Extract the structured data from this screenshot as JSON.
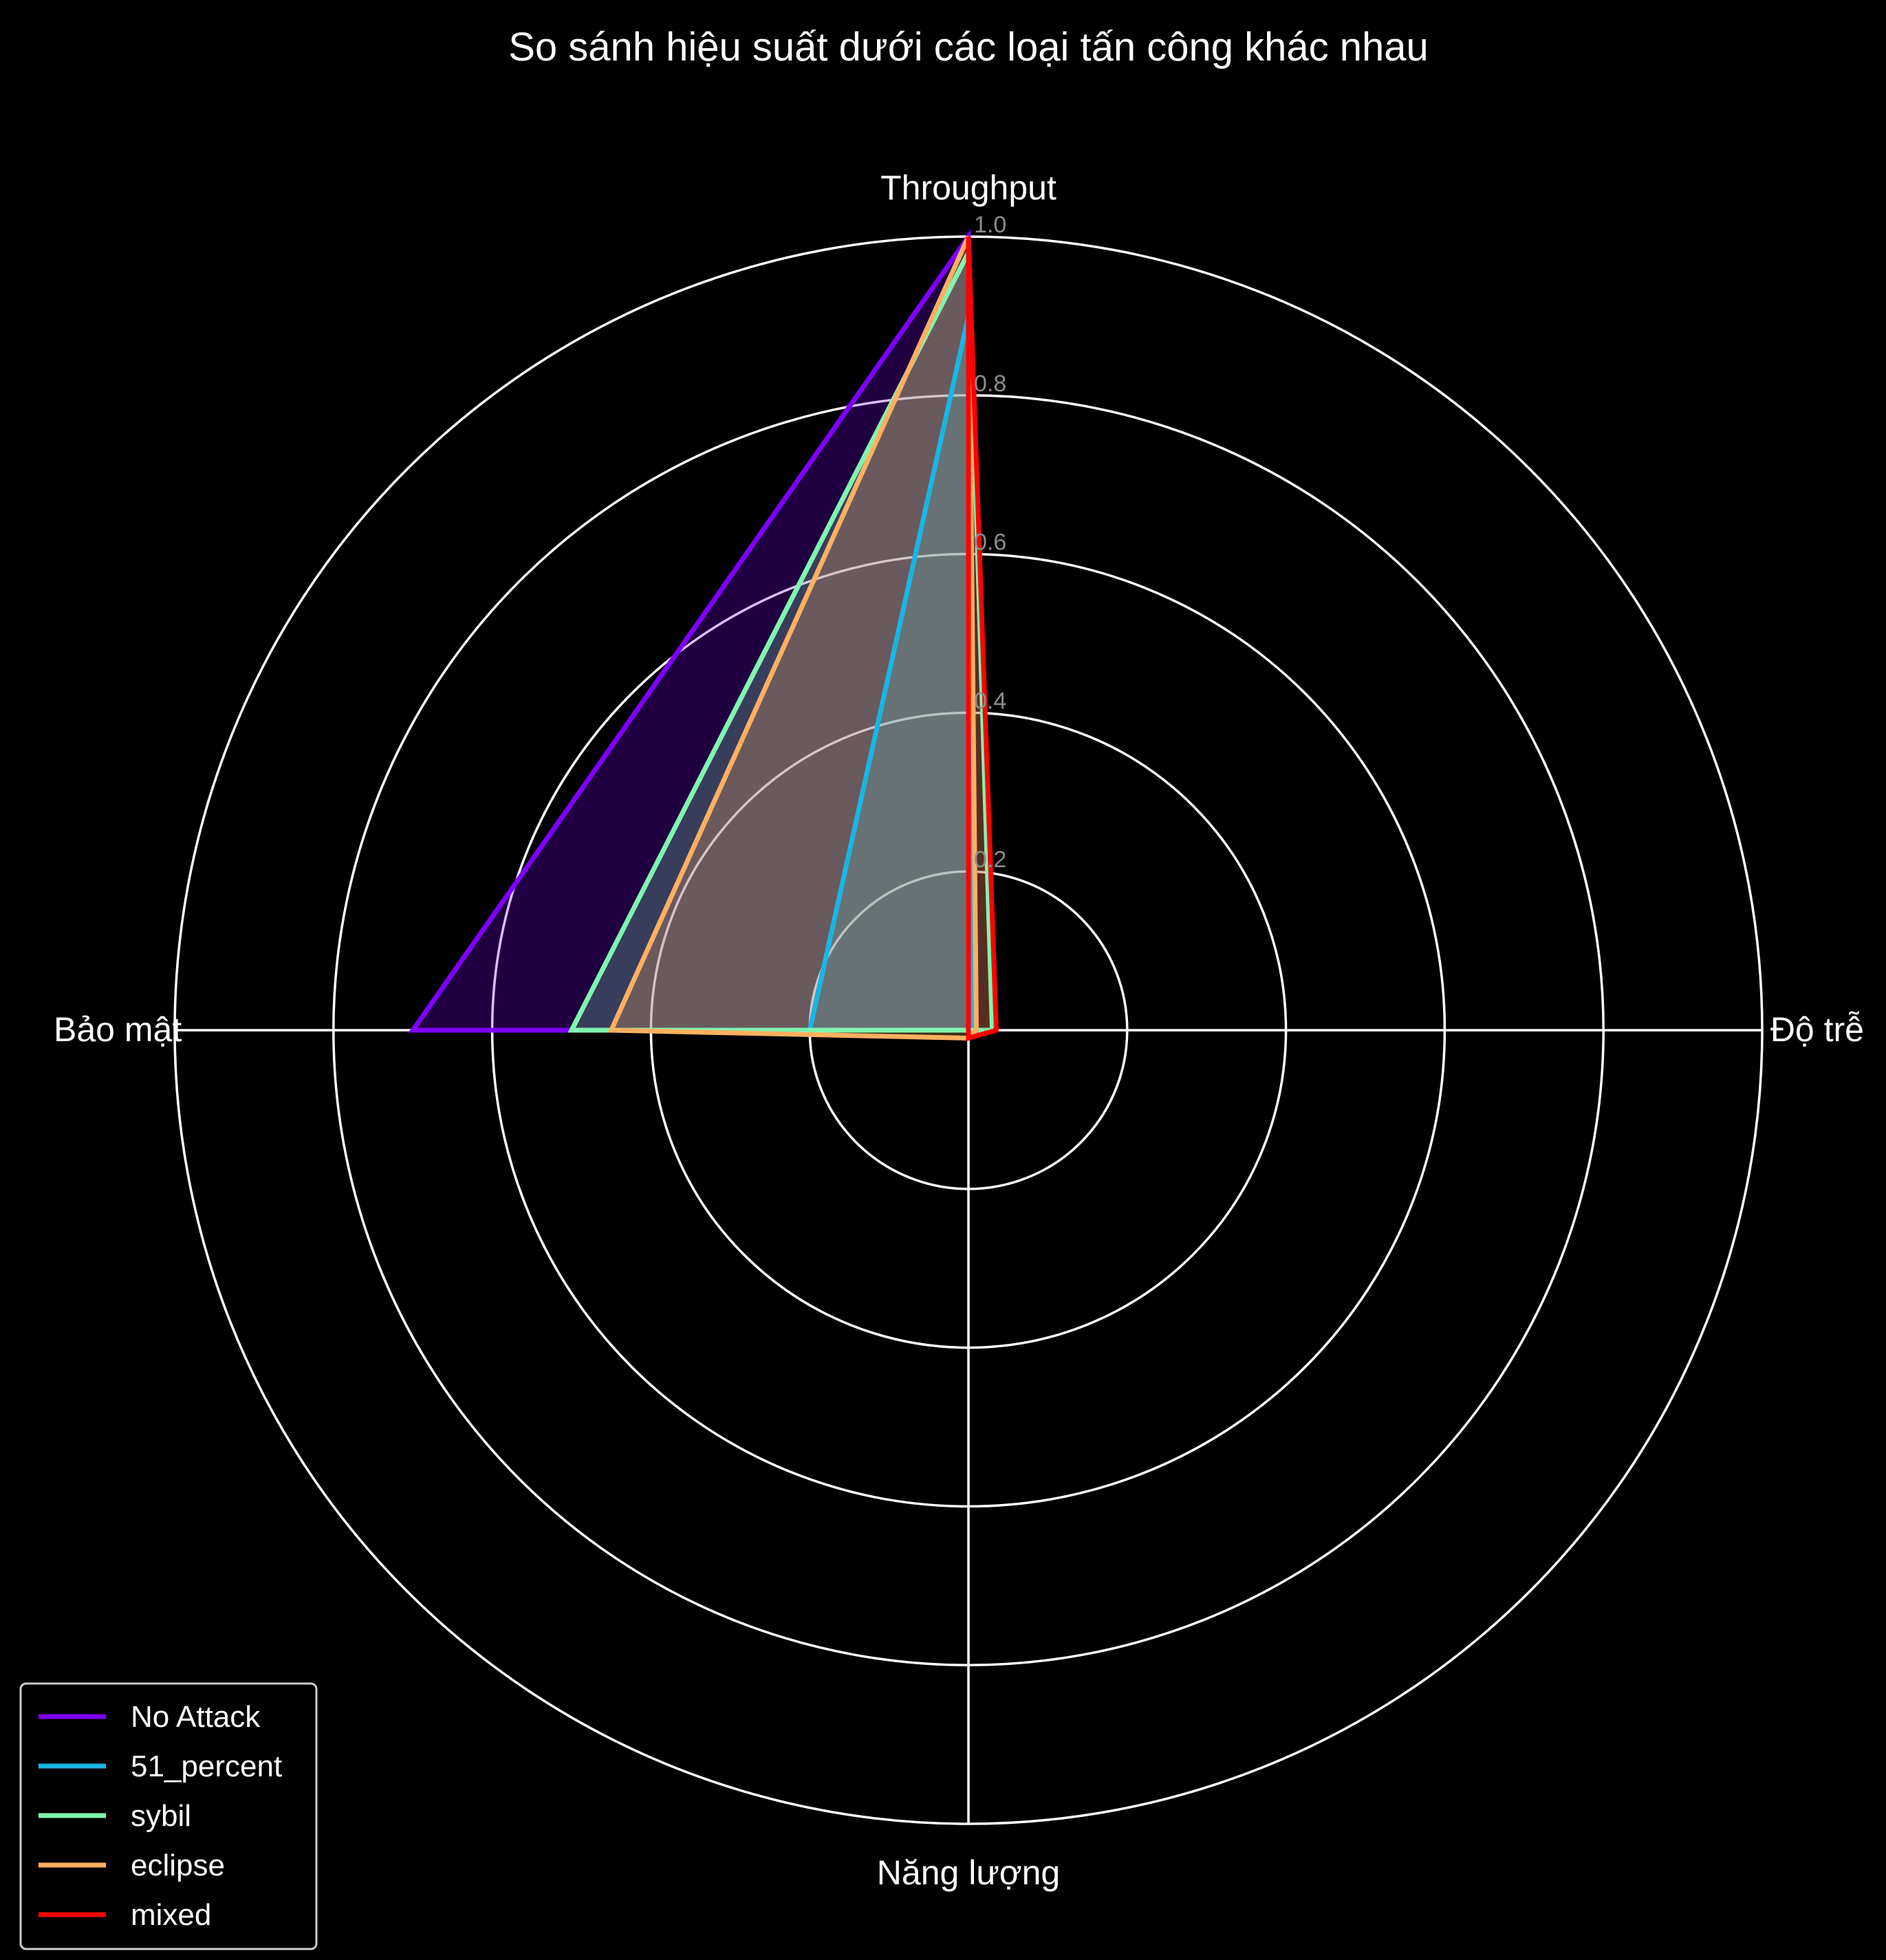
{
  "chart_data": {
    "type": "radar",
    "title": "So sánh hiệu suất dưới các loại tấn công khác nhau",
    "categories": [
      "Throughput",
      "Độ trễ",
      "Năng lượng",
      "Bảo mật"
    ],
    "rlim": [
      0,
      1.0
    ],
    "rticks": [
      0.2,
      0.4,
      0.6,
      0.8,
      1.0
    ],
    "rtick_labels": [
      "0.2",
      "0.4",
      "0.6",
      "0.8",
      "1.0"
    ],
    "grid": true,
    "legend_position": "lower-left",
    "background": "#000000",
    "series": [
      {
        "name": "No Attack",
        "color": "#7f00ff",
        "values": [
          1.0,
          0.01,
          0.0,
          0.7
        ]
      },
      {
        "name": "51_percent",
        "color": "#19b5e6",
        "values": [
          0.9,
          0.005,
          0.0,
          0.2
        ]
      },
      {
        "name": "sybil",
        "color": "#7ff5b0",
        "values": [
          0.98,
          0.03,
          0.0,
          0.5
        ]
      },
      {
        "name": "eclipse",
        "color": "#ffb060",
        "values": [
          1.0,
          0.01,
          0.01,
          0.45
        ]
      },
      {
        "name": "mixed",
        "color": "#ff0000",
        "values": [
          1.0,
          0.035,
          0.01,
          0.0
        ]
      }
    ]
  }
}
